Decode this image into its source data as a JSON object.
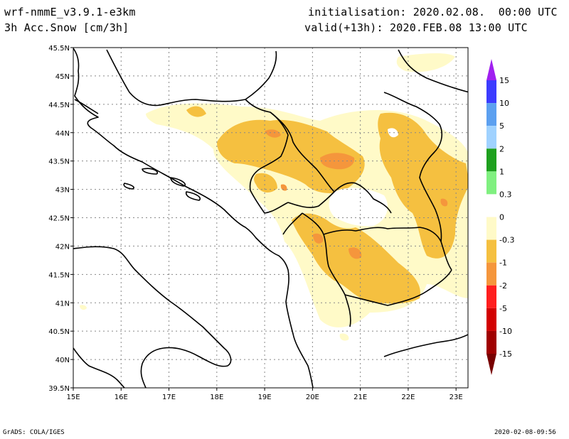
{
  "header": {
    "model": "wrf-nmmE_v3.9.1-e3km",
    "field": "3h Acc.Snow [cm/3h]",
    "initialisation": "initialisation: 2020.02.08.  00:00 UTC",
    "valid": "valid(+13h): 2020.FEB.08 13:00 UTC"
  },
  "map": {
    "lon_range": [
      15,
      23.25
    ],
    "lat_range": [
      39.5,
      45.5
    ],
    "x_ticks": [
      "15E",
      "16E",
      "17E",
      "18E",
      "19E",
      "20E",
      "21E",
      "22E",
      "23E"
    ],
    "y_ticks": [
      "39.5N",
      "40N",
      "40.5N",
      "41N",
      "41.5N",
      "42N",
      "42.5N",
      "43N",
      "43.5N",
      "44N",
      "44.5N",
      "45N",
      "45.5N"
    ],
    "grid_color": "#888888",
    "coast_color": "#000000"
  },
  "legend": {
    "labels": [
      "15",
      "10",
      "5",
      "2",
      "1",
      "0.3",
      "0",
      "-0.3",
      "-1",
      "-2",
      "-5",
      "-10",
      "-15"
    ],
    "colors": [
      "#a020f0",
      "#3c3cff",
      "#5ca0f0",
      "#a0d2ff",
      "#1ea01e",
      "#80f080",
      "#ffffff",
      "#fffac8",
      "#f5c040",
      "#f5963c",
      "#ff1e1e",
      "#d20000",
      "#a00000",
      "#780000"
    ]
  },
  "snow_colors": {
    "light": "#fffac8",
    "medium": "#f5c040",
    "heavy": "#f5963c"
  },
  "footer": {
    "left": "GrADS: COLA/IGES",
    "right": "2020-02-08-09:56"
  }
}
